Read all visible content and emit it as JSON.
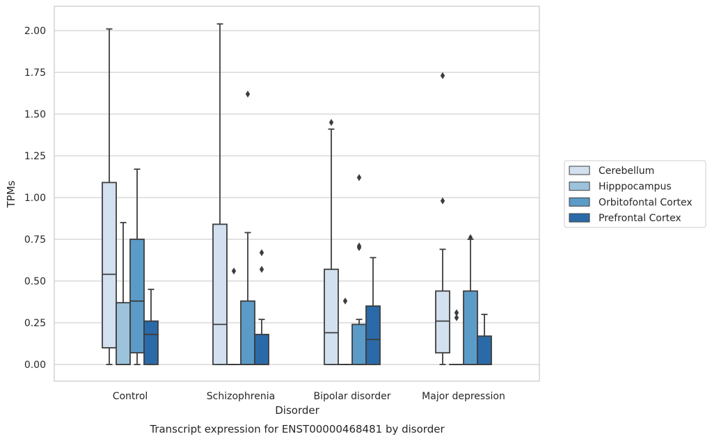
{
  "chart_data": {
    "type": "boxplot",
    "title": "Transcript expression for ENST00000468481 by disorder",
    "xlabel": "Disorder",
    "ylabel": "TPMs",
    "ylim": [
      -0.1,
      2.15
    ],
    "yticks": [
      "0.00",
      "0.25",
      "0.50",
      "0.75",
      "1.00",
      "1.25",
      "1.50",
      "1.75",
      "2.00"
    ],
    "categories": [
      "Control",
      "Schizophrenia",
      "Bipolar disorder",
      "Major depression"
    ],
    "grid": true,
    "legend_position": "right",
    "series": [
      {
        "name": "Cerebellum",
        "color": "#d2e0ef",
        "boxes": [
          {
            "whislo": 0.0,
            "q1": 0.1,
            "med": 0.54,
            "q3": 1.09,
            "whishi": 2.01,
            "fliers": []
          },
          {
            "whislo": 0.0,
            "q1": 0.0,
            "med": 0.24,
            "q3": 0.84,
            "whishi": 2.04,
            "fliers": []
          },
          {
            "whislo": 0.0,
            "q1": 0.0,
            "med": 0.19,
            "q3": 0.57,
            "whishi": 1.41,
            "fliers": [
              1.45
            ]
          },
          {
            "whislo": 0.0,
            "q1": 0.07,
            "med": 0.26,
            "q3": 0.44,
            "whishi": 0.69,
            "fliers": [
              0.98,
              1.73
            ]
          }
        ]
      },
      {
        "name": "Hipppocampus",
        "color": "#9cc2dc",
        "boxes": [
          {
            "whislo": 0.0,
            "q1": 0.0,
            "med": 0.0,
            "q3": 0.37,
            "whishi": 0.85,
            "fliers": []
          },
          {
            "whislo": 0.0,
            "q1": 0.0,
            "med": 0.0,
            "q3": 0.0,
            "whishi": 0.0,
            "fliers": [
              0.56
            ]
          },
          {
            "whislo": 0.0,
            "q1": 0.0,
            "med": 0.0,
            "q3": 0.0,
            "whishi": 0.0,
            "fliers": [
              0.38
            ]
          },
          {
            "whislo": 0.0,
            "q1": 0.0,
            "med": 0.0,
            "q3": 0.0,
            "whishi": 0.0,
            "fliers": [
              0.28,
              0.31
            ]
          }
        ]
      },
      {
        "name": "Orbitofontal Cortex",
        "color": "#5b9bc8",
        "boxes": [
          {
            "whislo": 0.0,
            "q1": 0.07,
            "med": 0.38,
            "q3": 0.75,
            "whishi": 1.17,
            "fliers": []
          },
          {
            "whislo": 0.0,
            "q1": 0.0,
            "med": 0.0,
            "q3": 0.38,
            "whishi": 0.79,
            "fliers": [
              1.62
            ]
          },
          {
            "whislo": 0.0,
            "q1": 0.0,
            "med": 0.0,
            "q3": 0.24,
            "whishi": 0.27,
            "fliers": [
              0.7,
              0.71,
              1.12
            ]
          },
          {
            "whislo": 0.0,
            "q1": 0.0,
            "med": 0.0,
            "q3": 0.44,
            "whishi": 0.75,
            "fliers": [
              0.76
            ]
          }
        ]
      },
      {
        "name": "Prefrontal Cortex",
        "color": "#2b6aa8",
        "boxes": [
          {
            "whislo": 0.0,
            "q1": 0.0,
            "med": 0.18,
            "q3": 0.26,
            "whishi": 0.45,
            "fliers": []
          },
          {
            "whislo": 0.0,
            "q1": 0.0,
            "med": 0.0,
            "q3": 0.18,
            "whishi": 0.27,
            "fliers": [
              0.57,
              0.67
            ]
          },
          {
            "whislo": 0.0,
            "q1": 0.0,
            "med": 0.15,
            "q3": 0.35,
            "whishi": 0.64,
            "fliers": []
          },
          {
            "whislo": 0.0,
            "q1": 0.0,
            "med": 0.0,
            "q3": 0.17,
            "whishi": 0.3,
            "fliers": []
          }
        ]
      }
    ]
  }
}
